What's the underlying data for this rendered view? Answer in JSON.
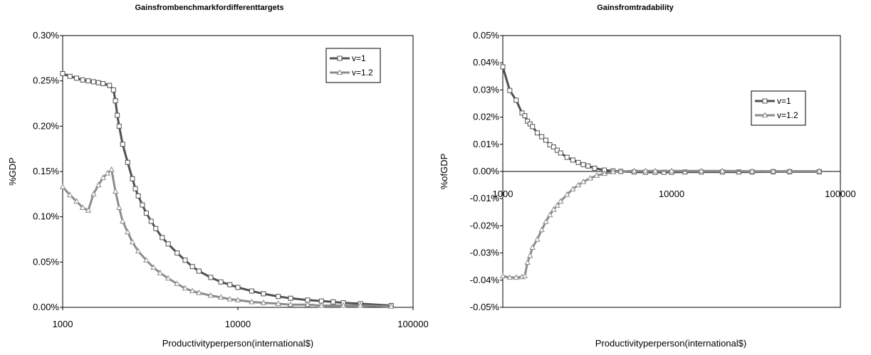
{
  "chart_data": [
    {
      "type": "line",
      "title": "Gainsfrombenchmarkfordifferenttargets",
      "xlabel": "Productivityperperson(international$)",
      "ylabel": "%GDP",
      "xscale": "log",
      "xlim": [
        1000,
        100000
      ],
      "ylim": [
        0,
        0.3
      ],
      "xticks": [
        1000,
        10000,
        100000
      ],
      "xtick_labels": [
        "1000",
        "10000",
        "100000"
      ],
      "yticks": [
        0,
        0.05,
        0.1,
        0.15,
        0.2,
        0.25,
        0.3
      ],
      "ytick_labels": [
        "0.00%",
        "0.05%",
        "0.10%",
        "0.15%",
        "0.20%",
        "0.25%",
        "0.30%"
      ],
      "grid": false,
      "legend": "top-right",
      "series": [
        {
          "name": "v=1",
          "color": "#505050",
          "marker": "square",
          "x": [
            1000,
            1100,
            1200,
            1300,
            1400,
            1500,
            1600,
            1700,
            1850,
            1950,
            2000,
            2050,
            2100,
            2200,
            2350,
            2500,
            2600,
            2700,
            2850,
            3000,
            3200,
            3400,
            3700,
            4000,
            4500,
            5000,
            5500,
            6000,
            7000,
            8000,
            9000,
            10000,
            12000,
            14000,
            17000,
            20000,
            25000,
            30000,
            35000,
            40000,
            50000,
            75000
          ],
          "y": [
            0.258,
            0.255,
            0.253,
            0.251,
            0.25,
            0.249,
            0.248,
            0.247,
            0.245,
            0.24,
            0.228,
            0.212,
            0.2,
            0.18,
            0.16,
            0.142,
            0.131,
            0.123,
            0.113,
            0.104,
            0.095,
            0.087,
            0.077,
            0.07,
            0.06,
            0.052,
            0.045,
            0.04,
            0.033,
            0.028,
            0.025,
            0.022,
            0.018,
            0.015,
            0.012,
            0.01,
            0.008,
            0.007,
            0.006,
            0.005,
            0.004,
            0.002
          ]
        },
        {
          "name": "v=1.2",
          "color": "#8c8c8c",
          "marker": "triangle",
          "x": [
            1000,
            1100,
            1200,
            1300,
            1400,
            1500,
            1600,
            1700,
            1800,
            1900,
            2000,
            2100,
            2200,
            2350,
            2500,
            2700,
            3000,
            3300,
            3600,
            4000,
            4500,
            5000,
            5500,
            6000,
            7000,
            8000,
            9000,
            10000,
            12000,
            14000,
            17000,
            20000,
            25000,
            30000,
            40000,
            50000,
            75000
          ],
          "y": [
            0.133,
            0.124,
            0.117,
            0.11,
            0.107,
            0.125,
            0.135,
            0.143,
            0.148,
            0.152,
            0.128,
            0.11,
            0.095,
            0.083,
            0.072,
            0.062,
            0.052,
            0.044,
            0.038,
            0.032,
            0.026,
            0.021,
            0.018,
            0.016,
            0.013,
            0.011,
            0.009,
            0.008,
            0.006,
            0.005,
            0.004,
            0.003,
            0.003,
            0.002,
            0.002,
            0.002,
            0.001
          ]
        }
      ]
    },
    {
      "type": "line",
      "title": "Gainsfromtradability",
      "xlabel": "Productivityperperson(international$)",
      "ylabel": "%ofGDP",
      "xscale": "log",
      "xlim": [
        1000,
        100000
      ],
      "ylim": [
        -0.05,
        0.05
      ],
      "xticks": [
        1000,
        10000,
        100000
      ],
      "xtick_labels": [
        "1000",
        "10000",
        "100000"
      ],
      "yticks": [
        -0.05,
        -0.04,
        -0.03,
        -0.02,
        -0.01,
        0,
        0.01,
        0.02,
        0.03,
        0.04,
        0.05
      ],
      "ytick_labels": [
        "-0.05%",
        "-0.04%",
        "-0.03%",
        "-0.02%",
        "-0.01%",
        "0.00%",
        "0.01%",
        "0.02%",
        "0.03%",
        "0.04%",
        "0.05%"
      ],
      "grid": false,
      "legend": "top-right",
      "series": [
        {
          "name": "v=1",
          "color": "#505050",
          "marker": "square",
          "x": [
            1000,
            1100,
            1200,
            1300,
            1350,
            1400,
            1450,
            1500,
            1600,
            1700,
            1800,
            1900,
            2000,
            2100,
            2200,
            2400,
            2600,
            2800,
            3000,
            3200,
            3500,
            4000,
            4500,
            5000,
            6000,
            7000,
            8000,
            9000,
            10000,
            12000,
            15000,
            20000,
            25000,
            30000,
            40000,
            50000,
            75000
          ],
          "y": [
            0.0385,
            0.0298,
            0.0262,
            0.0215,
            0.0205,
            0.0185,
            0.0175,
            0.0165,
            0.0142,
            0.0128,
            0.0115,
            0.0098,
            0.009,
            0.0078,
            0.0068,
            0.0052,
            0.0042,
            0.0033,
            0.0025,
            0.002,
            0.0012,
            0.0005,
            0.0002,
            0.0,
            -0.0002,
            -0.0003,
            -0.0003,
            -0.0003,
            -0.0003,
            -0.0002,
            -0.0002,
            -0.0002,
            -0.0002,
            -0.0002,
            -0.0001,
            -0.0001,
            -0.0001
          ]
        },
        {
          "name": "v=1.2",
          "color": "#8c8c8c",
          "marker": "triangle",
          "x": [
            1000,
            1100,
            1200,
            1300,
            1350,
            1400,
            1450,
            1500,
            1600,
            1700,
            1800,
            1900,
            2000,
            2100,
            2200,
            2400,
            2600,
            2800,
            3000,
            3300,
            3600,
            4000,
            4500,
            5000,
            6000,
            7000,
            8000,
            10000,
            15000,
            20000,
            30000,
            40000,
            50000,
            75000
          ],
          "y": [
            -0.0385,
            -0.039,
            -0.039,
            -0.0388,
            -0.0385,
            -0.0335,
            -0.031,
            -0.028,
            -0.025,
            -0.0215,
            -0.0185,
            -0.016,
            -0.014,
            -0.0125,
            -0.011,
            -0.0085,
            -0.0065,
            -0.005,
            -0.0038,
            -0.0025,
            -0.0015,
            -0.0008,
            -0.0002,
            0.0,
            0.0002,
            0.0002,
            0.0002,
            0.0002,
            0.0002,
            0.0002,
            0.0001,
            0.0001,
            0.0001,
            0.0001
          ]
        }
      ]
    }
  ]
}
